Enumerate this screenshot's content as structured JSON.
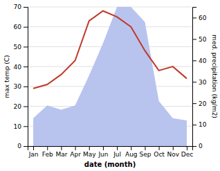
{
  "chart_data": {
    "type": "line",
    "categories": [
      "Jan",
      "Feb",
      "Mar",
      "Apr",
      "May",
      "Jun",
      "Jul",
      "Aug",
      "Sep",
      "Oct",
      "Nov",
      "Dec"
    ],
    "xlabel": "date (month)",
    "ylabel": "max temp (C)",
    "y2label": "med. precipitation (kg/m2)",
    "series": [
      {
        "type": "area",
        "axis": "y2",
        "color": "#b8c4ee",
        "values": [
          13,
          19,
          17,
          19,
          33,
          48,
          65,
          65,
          58,
          21,
          13,
          12
        ]
      },
      {
        "type": "line",
        "color": "#c0392b",
        "values": [
          29,
          31,
          36,
          43,
          63,
          68,
          65,
          60,
          48,
          38,
          40,
          34
        ]
      }
    ],
    "ylim": [
      0,
      70
    ],
    "yticks": [
      0,
      10,
      20,
      30,
      40,
      50,
      60,
      70
    ],
    "y2lim": [
      0,
      65
    ],
    "y2ticks": [
      0,
      10,
      20,
      30,
      40,
      50,
      60
    ],
    "grid": true
  }
}
